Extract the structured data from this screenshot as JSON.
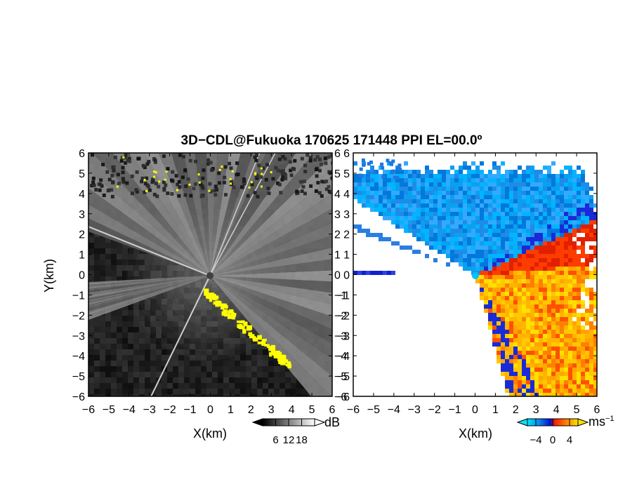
{
  "title": "3D−CDL@Fukuoka 170625 171448 PPI EL=00.0º",
  "chart_data": [
    {
      "type": "heatmap",
      "panel": "left",
      "quantity": "reflectivity / SNR (grayscale)",
      "xlabel": "X(km)",
      "ylabel": "Y(km)",
      "xlim": [
        -6,
        6
      ],
      "ylim": [
        -6,
        6
      ],
      "x_ticks": [
        "−6",
        "−5",
        "−4",
        "−3",
        "−2",
        "−1",
        "0",
        "1",
        "2",
        "3",
        "4",
        "5",
        "6"
      ],
      "y_ticks": [
        "6",
        "5",
        "4",
        "3",
        "2",
        "1",
        "0",
        "−1",
        "−2",
        "−3",
        "−4",
        "−5",
        "−6"
      ],
      "colorbar": {
        "unit": "dB",
        "ticks": [
          "6",
          "12",
          "18"
        ],
        "range": [
          0,
          24
        ],
        "colors": [
          "#000000",
          "#ffffff"
        ]
      },
      "highlight_color": "#ffff00",
      "sector_edges_deg_math": [
        160,
        183,
        200,
        235
      ],
      "notes": "empty (dark) sectors between the stated angles; yellow edge band along lower-right boundary"
    },
    {
      "type": "heatmap",
      "panel": "right",
      "quantity": "Doppler radial velocity",
      "xlabel": "X(km)",
      "ylabel": "",
      "xlim": [
        -6,
        6
      ],
      "ylim": [
        -6,
        6
      ],
      "x_ticks": [
        "−6",
        "−5",
        "−4",
        "−3",
        "−2",
        "−1",
        "0",
        "1",
        "2",
        "3",
        "4",
        "5",
        "6"
      ],
      "y_ticks": [
        "6",
        "5",
        "4",
        "3",
        "2",
        "1",
        "0",
        "−1",
        "−2",
        "−3",
        "−4",
        "−5",
        "−6"
      ],
      "colorbar": {
        "unit": "ms",
        "unit_exp": "−1",
        "ticks": [
          "−4",
          "0",
          "4"
        ],
        "range": [
          -6,
          6
        ],
        "colors": [
          "#00e5ff",
          "#0a7fe6",
          "#0010d0",
          "#ff2000",
          "#ff8c00",
          "#ffe000"
        ]
      },
      "background": "#ffffff"
    }
  ]
}
